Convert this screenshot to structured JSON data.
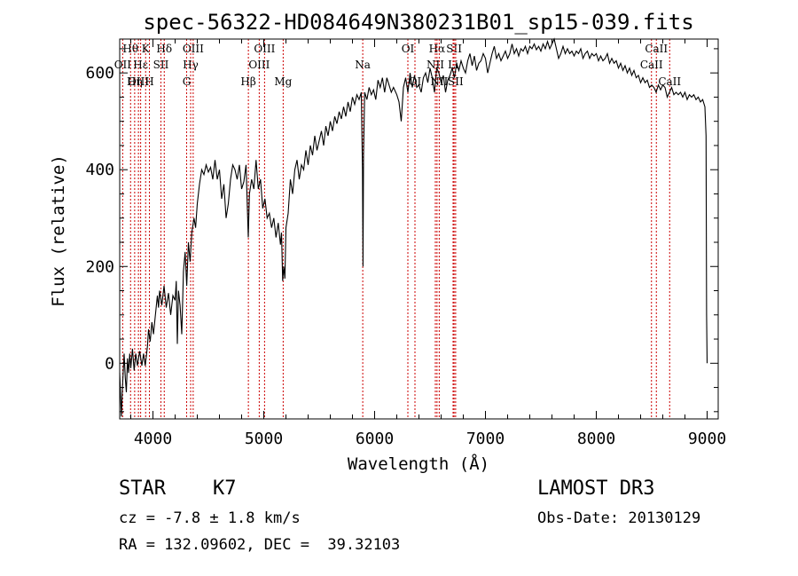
{
  "chart_data": {
    "type": "line",
    "title": "spec-56322-HD084649N380231B01_sp15-039.fits",
    "xlabel": "Wavelength (Å)",
    "ylabel": "Flux (relative)",
    "xlim": [
      3700,
      9100
    ],
    "ylim": [
      -115,
      670
    ],
    "xticks": [
      4000,
      5000,
      6000,
      7000,
      8000,
      9000
    ],
    "yticks": [
      0,
      200,
      400,
      600
    ],
    "grid": false,
    "line_color": "#000000",
    "marker_color": "#cc0000",
    "series": [
      {
        "points": [
          [
            3700,
            -20
          ],
          [
            3715,
            -110
          ],
          [
            3725,
            -50
          ],
          [
            3740,
            20
          ],
          [
            3750,
            -30
          ],
          [
            3760,
            -60
          ],
          [
            3770,
            10
          ],
          [
            3780,
            -20
          ],
          [
            3790,
            20
          ],
          [
            3800,
            -10
          ],
          [
            3815,
            30
          ],
          [
            3830,
            -15
          ],
          [
            3845,
            20
          ],
          [
            3860,
            -5
          ],
          [
            3880,
            25
          ],
          [
            3900,
            -5
          ],
          [
            3915,
            20
          ],
          [
            3930,
            -5
          ],
          [
            3950,
            35
          ],
          [
            3960,
            70
          ],
          [
            3975,
            45
          ],
          [
            3990,
            85
          ],
          [
            4005,
            60
          ],
          [
            4020,
            95
          ],
          [
            4040,
            140
          ],
          [
            4050,
            115
          ],
          [
            4060,
            150
          ],
          [
            4080,
            120
          ],
          [
            4100,
            160
          ],
          [
            4120,
            115
          ],
          [
            4140,
            145
          ],
          [
            4160,
            100
          ],
          [
            4180,
            140
          ],
          [
            4200,
            130
          ],
          [
            4210,
            170
          ],
          [
            4220,
            40
          ],
          [
            4230,
            150
          ],
          [
            4245,
            120
          ],
          [
            4260,
            60
          ],
          [
            4275,
            190
          ],
          [
            4290,
            230
          ],
          [
            4305,
            160
          ],
          [
            4320,
            250
          ],
          [
            4335,
            210
          ],
          [
            4350,
            270
          ],
          [
            4370,
            300
          ],
          [
            4385,
            280
          ],
          [
            4400,
            330
          ],
          [
            4420,
            370
          ],
          [
            4440,
            400
          ],
          [
            4460,
            390
          ],
          [
            4480,
            410
          ],
          [
            4500,
            395
          ],
          [
            4520,
            405
          ],
          [
            4540,
            380
          ],
          [
            4560,
            420
          ],
          [
            4580,
            380
          ],
          [
            4600,
            400
          ],
          [
            4620,
            340
          ],
          [
            4640,
            370
          ],
          [
            4660,
            300
          ],
          [
            4680,
            330
          ],
          [
            4700,
            380
          ],
          [
            4720,
            410
          ],
          [
            4740,
            400
          ],
          [
            4760,
            380
          ],
          [
            4780,
            410
          ],
          [
            4800,
            360
          ],
          [
            4820,
            375
          ],
          [
            4840,
            410
          ],
          [
            4860,
            260
          ],
          [
            4870,
            350
          ],
          [
            4890,
            380
          ],
          [
            4910,
            360
          ],
          [
            4930,
            420
          ],
          [
            4950,
            360
          ],
          [
            4970,
            380
          ],
          [
            4990,
            320
          ],
          [
            5010,
            340
          ],
          [
            5030,
            300
          ],
          [
            5050,
            310
          ],
          [
            5070,
            280
          ],
          [
            5090,
            300
          ],
          [
            5110,
            260
          ],
          [
            5130,
            290
          ],
          [
            5150,
            245
          ],
          [
            5160,
            270
          ],
          [
            5170,
            170
          ],
          [
            5180,
            200
          ],
          [
            5190,
            175
          ],
          [
            5200,
            280
          ],
          [
            5220,
            310
          ],
          [
            5240,
            380
          ],
          [
            5260,
            350
          ],
          [
            5280,
            400
          ],
          [
            5300,
            420
          ],
          [
            5320,
            380
          ],
          [
            5340,
            410
          ],
          [
            5360,
            400
          ],
          [
            5380,
            440
          ],
          [
            5400,
            410
          ],
          [
            5420,
            450
          ],
          [
            5440,
            430
          ],
          [
            5460,
            470
          ],
          [
            5480,
            440
          ],
          [
            5500,
            460
          ],
          [
            5520,
            480
          ],
          [
            5540,
            450
          ],
          [
            5560,
            490
          ],
          [
            5580,
            470
          ],
          [
            5600,
            500
          ],
          [
            5620,
            480
          ],
          [
            5640,
            510
          ],
          [
            5660,
            495
          ],
          [
            5680,
            520
          ],
          [
            5700,
            505
          ],
          [
            5720,
            530
          ],
          [
            5740,
            510
          ],
          [
            5760,
            540
          ],
          [
            5780,
            520
          ],
          [
            5800,
            550
          ],
          [
            5820,
            535
          ],
          [
            5840,
            555
          ],
          [
            5860,
            545
          ],
          [
            5880,
            560
          ],
          [
            5890,
            400
          ],
          [
            5895,
            200
          ],
          [
            5900,
            430
          ],
          [
            5910,
            560
          ],
          [
            5930,
            545
          ],
          [
            5950,
            570
          ],
          [
            5970,
            555
          ],
          [
            5990,
            565
          ],
          [
            6010,
            545
          ],
          [
            6030,
            585
          ],
          [
            6050,
            570
          ],
          [
            6070,
            590
          ],
          [
            6090,
            560
          ],
          [
            6110,
            590
          ],
          [
            6130,
            575
          ],
          [
            6150,
            560
          ],
          [
            6170,
            570
          ],
          [
            6200,
            555
          ],
          [
            6220,
            540
          ],
          [
            6240,
            500
          ],
          [
            6260,
            570
          ],
          [
            6280,
            590
          ],
          [
            6300,
            560
          ],
          [
            6320,
            600
          ],
          [
            6340,
            570
          ],
          [
            6360,
            595
          ],
          [
            6380,
            570
          ],
          [
            6400,
            575
          ],
          [
            6420,
            560
          ],
          [
            6440,
            590
          ],
          [
            6460,
            600
          ],
          [
            6480,
            580
          ],
          [
            6500,
            610
          ],
          [
            6520,
            590
          ],
          [
            6540,
            560
          ],
          [
            6560,
            610
          ],
          [
            6580,
            600
          ],
          [
            6600,
            580
          ],
          [
            6620,
            595
          ],
          [
            6640,
            560
          ],
          [
            6660,
            585
          ],
          [
            6680,
            595
          ],
          [
            6700,
            610
          ],
          [
            6720,
            590
          ],
          [
            6740,
            620
          ],
          [
            6760,
            605
          ],
          [
            6780,
            625
          ],
          [
            6800,
            610
          ],
          [
            6820,
            600
          ],
          [
            6840,
            625
          ],
          [
            6860,
            640
          ],
          [
            6880,
            615
          ],
          [
            6900,
            635
          ],
          [
            6920,
            605
          ],
          [
            6940,
            620
          ],
          [
            6960,
            625
          ],
          [
            6980,
            640
          ],
          [
            7000,
            630
          ],
          [
            7020,
            600
          ],
          [
            7040,
            620
          ],
          [
            7060,
            640
          ],
          [
            7080,
            655
          ],
          [
            7100,
            630
          ],
          [
            7120,
            640
          ],
          [
            7140,
            625
          ],
          [
            7160,
            635
          ],
          [
            7180,
            645
          ],
          [
            7200,
            630
          ],
          [
            7220,
            640
          ],
          [
            7240,
            660
          ],
          [
            7260,
            640
          ],
          [
            7280,
            650
          ],
          [
            7300,
            635
          ],
          [
            7320,
            650
          ],
          [
            7340,
            645
          ],
          [
            7360,
            655
          ],
          [
            7380,
            640
          ],
          [
            7400,
            655
          ],
          [
            7420,
            650
          ],
          [
            7440,
            660
          ],
          [
            7460,
            648
          ],
          [
            7480,
            655
          ],
          [
            7500,
            645
          ],
          [
            7520,
            660
          ],
          [
            7540,
            650
          ],
          [
            7560,
            665
          ],
          [
            7580,
            650
          ],
          [
            7600,
            660
          ],
          [
            7620,
            670
          ],
          [
            7640,
            650
          ],
          [
            7660,
            630
          ],
          [
            7680,
            640
          ],
          [
            7700,
            655
          ],
          [
            7720,
            640
          ],
          [
            7740,
            650
          ],
          [
            7760,
            640
          ],
          [
            7780,
            645
          ],
          [
            7800,
            635
          ],
          [
            7820,
            645
          ],
          [
            7840,
            640
          ],
          [
            7860,
            650
          ],
          [
            7880,
            630
          ],
          [
            7900,
            640
          ],
          [
            7920,
            645
          ],
          [
            7940,
            630
          ],
          [
            7960,
            640
          ],
          [
            7980,
            635
          ],
          [
            8000,
            640
          ],
          [
            8020,
            625
          ],
          [
            8040,
            635
          ],
          [
            8060,
            625
          ],
          [
            8080,
            630
          ],
          [
            8100,
            640
          ],
          [
            8120,
            620
          ],
          [
            8140,
            630
          ],
          [
            8160,
            620
          ],
          [
            8180,
            625
          ],
          [
            8200,
            610
          ],
          [
            8220,
            620
          ],
          [
            8240,
            605
          ],
          [
            8260,
            615
          ],
          [
            8280,
            600
          ],
          [
            8300,
            610
          ],
          [
            8320,
            595
          ],
          [
            8340,
            605
          ],
          [
            8360,
            590
          ],
          [
            8380,
            595
          ],
          [
            8400,
            580
          ],
          [
            8420,
            590
          ],
          [
            8440,
            580
          ],
          [
            8460,
            585
          ],
          [
            8480,
            570
          ],
          [
            8500,
            575
          ],
          [
            8520,
            570
          ],
          [
            8540,
            560
          ],
          [
            8560,
            575
          ],
          [
            8580,
            565
          ],
          [
            8600,
            575
          ],
          [
            8620,
            570
          ],
          [
            8640,
            550
          ],
          [
            8660,
            560
          ],
          [
            8680,
            570
          ],
          [
            8700,
            555
          ],
          [
            8720,
            560
          ],
          [
            8740,
            555
          ],
          [
            8760,
            560
          ],
          [
            8780,
            550
          ],
          [
            8800,
            560
          ],
          [
            8820,
            545
          ],
          [
            8840,
            555
          ],
          [
            8860,
            550
          ],
          [
            8880,
            555
          ],
          [
            8900,
            545
          ],
          [
            8920,
            550
          ],
          [
            8940,
            540
          ],
          [
            8960,
            545
          ],
          [
            8980,
            530
          ],
          [
            8990,
            470
          ],
          [
            8995,
            100
          ],
          [
            9000,
            0
          ]
        ]
      }
    ],
    "lines": [
      {
        "label": "Hθ",
        "wavelength": 3798,
        "row": 1
      },
      {
        "label": "OII",
        "wavelength": 3727,
        "row": 2
      },
      {
        "label": "OIII",
        "wavelength": 3869,
        "row": 3
      },
      {
        "label": "K",
        "wavelength": 3934,
        "row": 1
      },
      {
        "label": "Hη",
        "wavelength": 3835,
        "row": 3
      },
      {
        "label": "H",
        "wavelength": 3968,
        "row": 3
      },
      {
        "label": "Hε",
        "wavelength": 3889,
        "row": 2
      },
      {
        "label": "SII",
        "wavelength": 4072,
        "row": 2
      },
      {
        "label": "Hδ",
        "wavelength": 4102,
        "row": 1
      },
      {
        "label": "OIII",
        "wavelength": 4363,
        "row": 1
      },
      {
        "label": "Hγ",
        "wavelength": 4340,
        "row": 2
      },
      {
        "label": "G",
        "wavelength": 4304,
        "row": 3
      },
      {
        "label": "Hβ",
        "wavelength": 4861,
        "row": 3
      },
      {
        "label": "OIII",
        "wavelength": 5007,
        "row": 1
      },
      {
        "label": "OIII",
        "wavelength": 4959,
        "row": 2
      },
      {
        "label": "Mg",
        "wavelength": 5175,
        "row": 3
      },
      {
        "label": "Na",
        "wavelength": 5893,
        "row": 2
      },
      {
        "label": "OI",
        "wavelength": 6300,
        "row": 1
      },
      {
        "label": "OI",
        "wavelength": 6364,
        "row": 3
      },
      {
        "label": "Hα",
        "wavelength": 6563,
        "row": 1
      },
      {
        "label": "NII",
        "wavelength": 6548,
        "row": 2
      },
      {
        "label": "NII",
        "wavelength": 6583,
        "row": 3
      },
      {
        "label": "SII",
        "wavelength": 6717,
        "row": 1
      },
      {
        "label": "Li",
        "wavelength": 6708,
        "row": 2
      },
      {
        "label": "SII",
        "wavelength": 6731,
        "row": 3
      },
      {
        "label": "CaII",
        "wavelength": 8542,
        "row": 1
      },
      {
        "label": "CaII",
        "wavelength": 8498,
        "row": 2
      },
      {
        "label": "CaII",
        "wavelength": 8662,
        "row": 3
      }
    ]
  },
  "info": {
    "class_text": "STAR    K7",
    "survey_text": "LAMOST DR3",
    "cz_text": "cz = -7.8 ± 1.8 km/s",
    "obs_date_text": "Obs-Date: 20130129",
    "radec_text": "RA = 132.09602, DEC =  39.32103"
  }
}
